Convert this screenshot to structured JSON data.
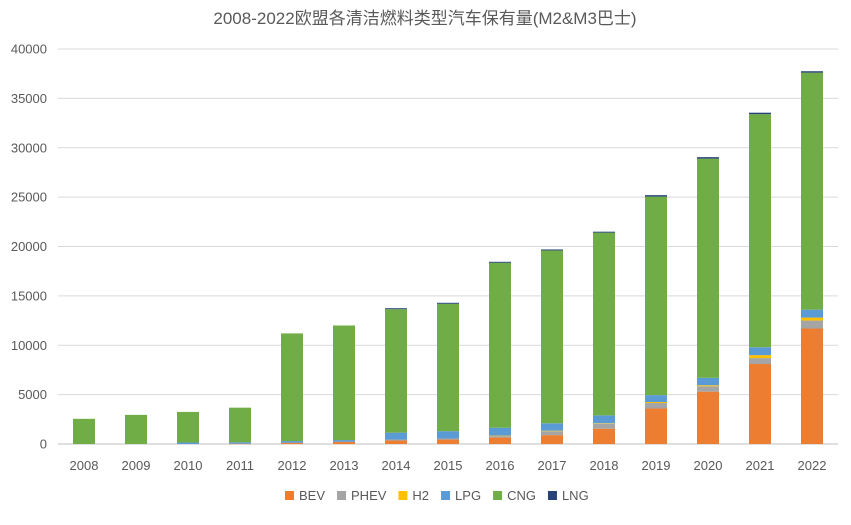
{
  "chart_data": {
    "type": "bar",
    "stacked": true,
    "title": "2008-2022欧盟各清洁燃料类型汽车保有量(M2&M3巴士)",
    "xlabel": "",
    "ylabel": "",
    "ylim": [
      0,
      40000
    ],
    "yticks": [
      0,
      5000,
      10000,
      15000,
      20000,
      25000,
      30000,
      35000,
      40000
    ],
    "grid": true,
    "legend_position": "bottom",
    "categories": [
      "2008",
      "2009",
      "2010",
      "2011",
      "2012",
      "2013",
      "2014",
      "2015",
      "2016",
      "2017",
      "2018",
      "2019",
      "2020",
      "2021",
      "2022"
    ],
    "series": [
      {
        "name": "BEV",
        "color": "#ED7D31",
        "values": [
          0,
          0,
          0,
          30,
          100,
          200,
          350,
          450,
          650,
          900,
          1550,
          3600,
          5300,
          8100,
          11700
        ]
      },
      {
        "name": "PHEV",
        "color": "#A5A5A5",
        "values": [
          0,
          0,
          0,
          0,
          50,
          50,
          100,
          100,
          150,
          400,
          500,
          550,
          550,
          600,
          800
        ]
      },
      {
        "name": "H2",
        "color": "#FFC000",
        "values": [
          0,
          0,
          0,
          0,
          0,
          0,
          0,
          0,
          50,
          50,
          50,
          100,
          100,
          300,
          300
        ]
      },
      {
        "name": "LPG",
        "color": "#5B9BD5",
        "values": [
          0,
          0,
          150,
          150,
          150,
          150,
          700,
          750,
          800,
          750,
          800,
          700,
          750,
          800,
          800
        ]
      },
      {
        "name": "CNG",
        "color": "#70AD47",
        "values": [
          2550,
          2950,
          3100,
          3500,
          10900,
          11600,
          12500,
          12900,
          16700,
          17500,
          18500,
          20100,
          22200,
          23600,
          24000
        ]
      },
      {
        "name": "LNG",
        "color": "#264478",
        "values": [
          0,
          0,
          0,
          0,
          0,
          0,
          100,
          100,
          100,
          100,
          100,
          150,
          150,
          150,
          150
        ]
      }
    ]
  }
}
